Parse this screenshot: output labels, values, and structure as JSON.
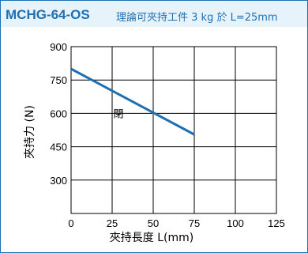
{
  "header": {
    "model": "MCHG-64-OS",
    "subtitle": "理論可夾持工件 3 kg 於 L=25mm"
  },
  "colors": {
    "accent": "#1f6fb3",
    "header_bg": "#e7f3fb",
    "line": "#1f6fb3",
    "grid": "#000000"
  },
  "chart_data": {
    "type": "line",
    "xlabel": "夾持長度 L(mm)",
    "ylabel": "夾持力 (N)",
    "xlim": [
      0,
      125
    ],
    "ylim": [
      150,
      900
    ],
    "xticks": [
      0,
      25,
      50,
      75,
      100,
      125
    ],
    "yticks": [
      300,
      450,
      600,
      750,
      900
    ],
    "grid": true,
    "series": [
      {
        "name": "閉",
        "x": [
          0,
          75
        ],
        "y": [
          800,
          505
        ]
      }
    ]
  }
}
